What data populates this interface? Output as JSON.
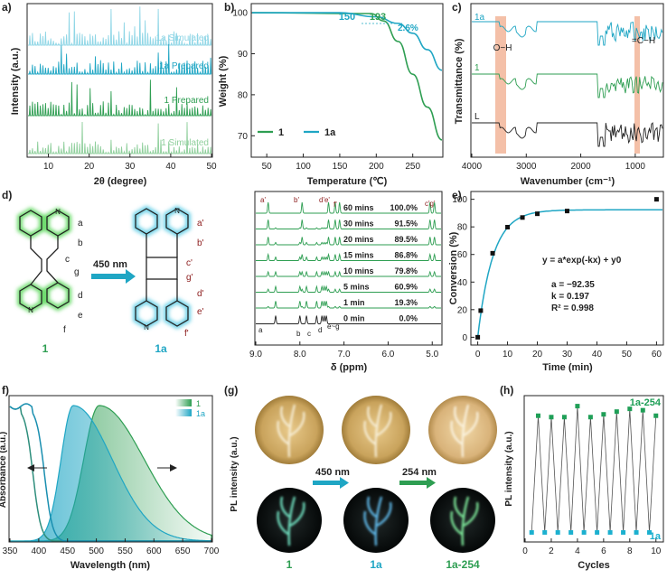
{
  "colors": {
    "green": "#2e9e52",
    "teal": "#1fa6c4",
    "dark": "#222222",
    "lightgreen": "#8fcf9c",
    "lightteal": "#8fd6e6",
    "salmon": "#f3b99f",
    "darkred": "#8b1a1a",
    "series_teal": "#1bb0cf",
    "series_green": "#1f9f57"
  },
  "chart_data": [
    {
      "id": "a",
      "type": "line",
      "panel_label": "a)",
      "xlabel": "2θ (degree)",
      "ylabel": "Intensity (a.u.)",
      "xlim": [
        5,
        50
      ],
      "xticks": [
        "10",
        "20",
        "30",
        "40",
        "50"
      ],
      "series": [
        {
          "name": "1a Simulated"
        },
        {
          "name": "1a Prepared"
        },
        {
          "name": "1 Prepared"
        },
        {
          "name": "1 Simulated"
        }
      ]
    },
    {
      "id": "b",
      "type": "line",
      "panel_label": "b)",
      "xlabel": "Temperature (℃)",
      "ylabel": "Weight (%)",
      "xlim": [
        30,
        290
      ],
      "ylim": [
        65,
        102
      ],
      "xticks": [
        "50",
        "100",
        "150",
        "200",
        "250"
      ],
      "yticks": [
        "70",
        "80",
        "90",
        "100"
      ],
      "annotations": [
        "150",
        "193",
        "2.6%"
      ],
      "series": [
        {
          "name": "1",
          "onset": 193,
          "x": [
            30,
            193,
            210,
            230,
            250,
            270,
            290
          ],
          "y": [
            100,
            99.8,
            98,
            93,
            85,
            77,
            69
          ]
        },
        {
          "name": "1a",
          "onset": 150,
          "x": [
            30,
            150,
            200,
            230,
            250,
            270,
            290
          ],
          "y": [
            100,
            100,
            99,
            97.4,
            95,
            91,
            86
          ]
        }
      ]
    },
    {
      "id": "c",
      "type": "line",
      "panel_label": "c)",
      "xlabel": "Wavenumber (cm⁻¹)",
      "ylabel": "Transmittance (%)",
      "xlim": [
        4000,
        500
      ],
      "xticks": [
        "4000",
        "3000",
        "2000",
        "1000"
      ],
      "annotations": [
        "O−H",
        "=C−H"
      ],
      "series": [
        {
          "name": "1a"
        },
        {
          "name": "1"
        },
        {
          "name": "L"
        }
      ]
    },
    {
      "id": "d",
      "type": "line",
      "panel_label": "d)",
      "xlabel": "δ (ppm)",
      "xlim": [
        9.0,
        4.8
      ],
      "xticks": [
        "9.0",
        "8.0",
        "7.0",
        "6.0",
        "5.0"
      ],
      "wavelength_label": "450 nm",
      "compound_start": "1",
      "compound_end": "1a",
      "proton_labels_start": [
        "a",
        "b",
        "c",
        "g",
        "d",
        "e",
        "f"
      ],
      "proton_labels_end": [
        "a'",
        "b'",
        "c'",
        "g'",
        "d'",
        "e'",
        "f'"
      ],
      "peak_labels_top": [
        "a'",
        "b'",
        "d'e'",
        "f'",
        "c'g'"
      ],
      "peak_labels_bottom": [
        "a",
        "b",
        "c",
        "d",
        "e~g"
      ],
      "traces": [
        {
          "time": "60 mins",
          "conversion": "100.0%"
        },
        {
          "time": "30 mins",
          "conversion": "91.5%"
        },
        {
          "time": "20 mins",
          "conversion": "89.5%"
        },
        {
          "time": "15 mins",
          "conversion": "86.8%"
        },
        {
          "time": "10 mins",
          "conversion": "79.8%"
        },
        {
          "time": "5 mins",
          "conversion": "60.9%"
        },
        {
          "time": "1 min",
          "conversion": "19.3%"
        },
        {
          "time": "0 min",
          "conversion": "0.0%"
        }
      ]
    },
    {
      "id": "e",
      "type": "scatter",
      "panel_label": "e)",
      "xlabel": "Time (min)",
      "ylabel": "Conversion (%)",
      "xlim": [
        -2,
        62
      ],
      "ylim": [
        -5,
        105
      ],
      "xticks": [
        "0",
        "10",
        "20",
        "30",
        "40",
        "50",
        "60"
      ],
      "yticks": [
        "0",
        "20",
        "40",
        "60",
        "80",
        "100"
      ],
      "x": [
        0,
        1,
        5,
        10,
        15,
        20,
        30,
        60
      ],
      "y": [
        0,
        19.3,
        60.9,
        79.8,
        86.8,
        89.5,
        91.5,
        100
      ],
      "fit": {
        "a": -92.35,
        "k": 0.197,
        "y0": 92.35
      },
      "equation": "y = a*exp(-kx) + y0",
      "params": [
        "a = −92.35",
        "k = 0.197",
        "R² = 0.998"
      ]
    },
    {
      "id": "f",
      "type": "area",
      "panel_label": "f)",
      "xlabel": "Wavelength (nm)",
      "ylabel": "Absorbance (a.u.)",
      "xlim": [
        350,
        700
      ],
      "xticks": [
        "350",
        "400",
        "450",
        "500",
        "550",
        "600",
        "650",
        "700"
      ],
      "legend": [
        "1",
        "1a"
      ],
      "series": [
        {
          "name": "1",
          "emission_peak": 505
        },
        {
          "name": "1a",
          "emission_peak": 460
        }
      ]
    },
    {
      "id": "g",
      "type": "table",
      "panel_label": "(g)",
      "ylabel": "PL intensity (a.u.)",
      "step1": "450 nm",
      "step2": "254 nm",
      "labels": [
        "1",
        "1a",
        "1a-254"
      ]
    },
    {
      "id": "h",
      "type": "scatter",
      "panel_label": "(h)",
      "xlabel": "Cycles",
      "ylabel": "PL intensity (a.u.)",
      "xlim": [
        0,
        10.5
      ],
      "xticks": [
        "0",
        "2",
        "4",
        "6",
        "8",
        "10"
      ],
      "series_labels": [
        "1a-254",
        "1a"
      ],
      "x_high": [
        1,
        2,
        3,
        4,
        5,
        6,
        7,
        8,
        9,
        10
      ],
      "y_high": [
        0.88,
        0.87,
        0.87,
        0.95,
        0.87,
        0.89,
        0.91,
        0.93,
        0.92,
        0.88
      ],
      "x_low": [
        0.5,
        1.5,
        2.5,
        3.5,
        4.5,
        5.5,
        6.5,
        7.5,
        8.5,
        9.5
      ],
      "y_low": [
        0.03,
        0.03,
        0.03,
        0.03,
        0.03,
        0.03,
        0.03,
        0.03,
        0.03,
        0.03
      ]
    }
  ]
}
